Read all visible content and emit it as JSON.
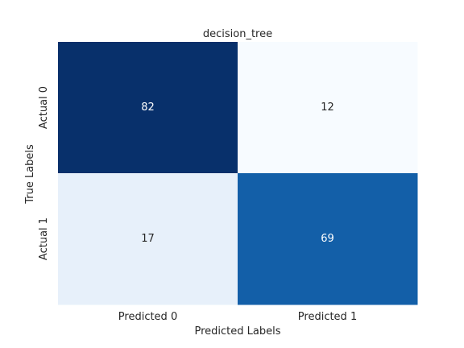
{
  "chart_data": {
    "type": "heatmap",
    "title": "decision_tree",
    "xlabel": "Predicted Labels",
    "ylabel": "True Labels",
    "x_categories": [
      "Predicted 0",
      "Predicted 1"
    ],
    "y_categories": [
      "Actual 0",
      "Actual 1"
    ],
    "values": [
      [
        82,
        12
      ],
      [
        17,
        69
      ]
    ],
    "colormap": "Blues",
    "colorbar": false,
    "grid": false,
    "colors": {
      "82": "#08306b",
      "12": "#f7fbff",
      "17": "#e7f0fa",
      "69": "#135fa8",
      "light_text": "#ffffff",
      "dark_text": "#262626"
    }
  }
}
